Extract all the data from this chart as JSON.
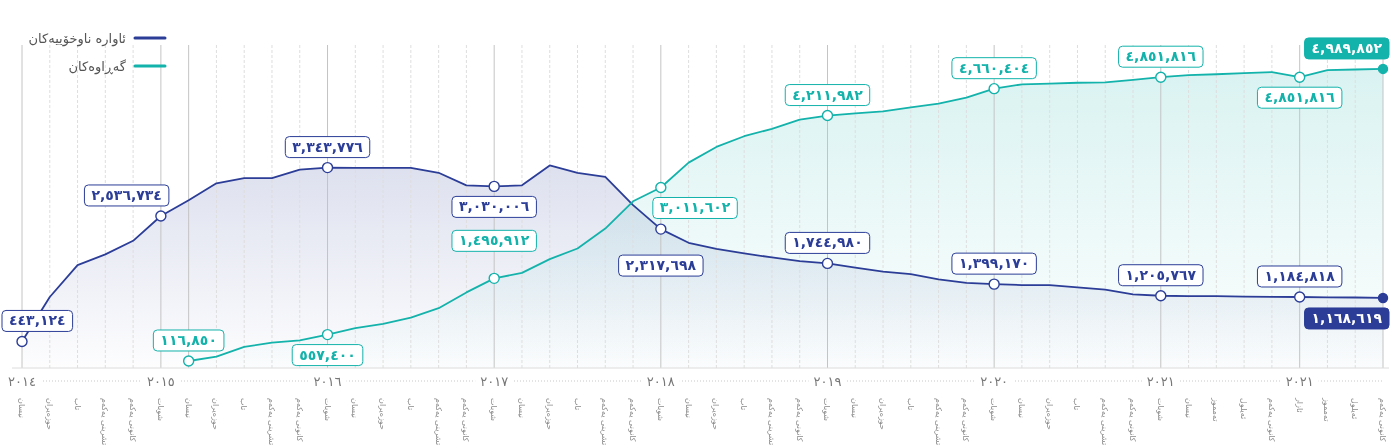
{
  "chart_data": {
    "type": "area",
    "categories": [
      "نیسان",
      "حوزەیران",
      "تاب",
      "تشرینی یەکەم",
      "کانونی یەکەم",
      "شوبات",
      "نیسان",
      "حوزەیران",
      "تاب",
      "تشرینی یەکەم",
      "کانونی یەکەم",
      "شوبات",
      "نیسان",
      "حوزەیران",
      "تاب",
      "تشرینی یەکەم",
      "کانونی یەکەم",
      "شوبات",
      "نیسان",
      "حوزەیران",
      "تاب",
      "تشرینی یەکەم",
      "کانونی یەکەم",
      "شوبات",
      "نیسان",
      "حوزەیران",
      "تاب",
      "تشرینی یەکەم",
      "کانونی یەکەم",
      "شوبات",
      "نیسان",
      "حوزەیران",
      "تاب",
      "تشرینی یەکەم",
      "کانونی یەکەم",
      "شوبات",
      "نیسان",
      "حوزەیران",
      "تاب",
      "تشرینی یەکەم",
      "کانونی یەکەم",
      "شوبات",
      "نیسان",
      "تەمموز",
      "ئەیلول",
      "کانونی یەکەم",
      "ئازار",
      "تەمموز",
      "ئەیلول",
      "کانونی یەکەم"
    ],
    "series": [
      {
        "name": "ئاوارە ناوخۆییەکان",
        "color": "#2b3d97",
        "values": [
          443124,
          1185000,
          1716000,
          1896000,
          2122000,
          2536734,
          2800000,
          3082000,
          3169000,
          3169000,
          3309000,
          3343776,
          3340000,
          3340000,
          3340000,
          3257000,
          3048000,
          3030006,
          3048000,
          3380000,
          3257000,
          3187000,
          2718000,
          2317698,
          2089000,
          1989000,
          1913000,
          1844000,
          1783000,
          1744980,
          1673000,
          1608000,
          1565000,
          1478000,
          1421000,
          1399170,
          1384000,
          1384000,
          1345000,
          1306000,
          1229000,
          1205767,
          1198000,
          1198000,
          1191000,
          1187000,
          1184818,
          1180000,
          1176000,
          1168619
        ],
        "value_labels": [
          "٤٤٣,١٢٤",
          null,
          null,
          null,
          null,
          "٢,٥٣٦,٧٣٤",
          null,
          null,
          null,
          null,
          null,
          "٣,٣٤٣,٧٧٦",
          null,
          null,
          null,
          null,
          null,
          "٣,٠٣٠,٠٠٦",
          null,
          null,
          null,
          null,
          null,
          "٢,٣١٧,٦٩٨",
          null,
          null,
          null,
          null,
          null,
          "١,٧٤٤,٩٨٠",
          null,
          null,
          null,
          null,
          null,
          "١,٣٩٩,١٧٠",
          null,
          null,
          null,
          null,
          null,
          "١,٢٠٥,٧٦٧",
          null,
          null,
          null,
          null,
          "١,١٨٤,٨١٨",
          null,
          null,
          "١,١٦٨,٦١٩"
        ]
      },
      {
        "name": "گەڕاوەکان",
        "color": "#13b2ab",
        "values": [
          null,
          null,
          null,
          null,
          null,
          null,
          116850,
          190000,
          352000,
          425000,
          462000,
          557400,
          664000,
          735000,
          842000,
          998000,
          1261000,
          1495912,
          1587000,
          1817000,
          1994000,
          2326000,
          2781000,
          3011602,
          3426000,
          3688000,
          3867000,
          3991000,
          4143000,
          4211982,
          4248000,
          4283000,
          4347000,
          4411000,
          4511000,
          4660404,
          4733000,
          4746000,
          4759000,
          4766000,
          4806000,
          4851816,
          4886000,
          4901000,
          4921000,
          4936000,
          4851816,
          4970000,
          4980000,
          4989852
        ],
        "value_labels": [
          null,
          null,
          null,
          null,
          null,
          null,
          "١١٦,٨٥٠",
          null,
          null,
          null,
          null,
          "٥٥٧,٤٠٠",
          null,
          null,
          null,
          null,
          null,
          "١,٤٩٥,٩١٢",
          null,
          null,
          null,
          null,
          null,
          "٣,٠١١,٦٠٢",
          null,
          null,
          null,
          null,
          null,
          "٤,٢١١,٩٨٢",
          null,
          null,
          null,
          null,
          null,
          "٤,٦٦٠,٤٠٤",
          null,
          null,
          null,
          null,
          null,
          "٤,٨٥١,٨١٦",
          null,
          null,
          null,
          null,
          "٤,٨٥١,٨١٦",
          null,
          null,
          "٤,٩٨٩,٨٥٢"
        ]
      }
    ],
    "annotations": [
      "٢٠١٤",
      "٢٠١٥",
      "٢٠١٦",
      "٢٠١٧",
      "٢٠١٨",
      "٢٠١٩",
      "٢٠٢٠",
      "٢٠٢١",
      "٢٠٢١"
    ],
    "tick_labels": "x",
    "grid": "x",
    "legend": "top left"
  }
}
